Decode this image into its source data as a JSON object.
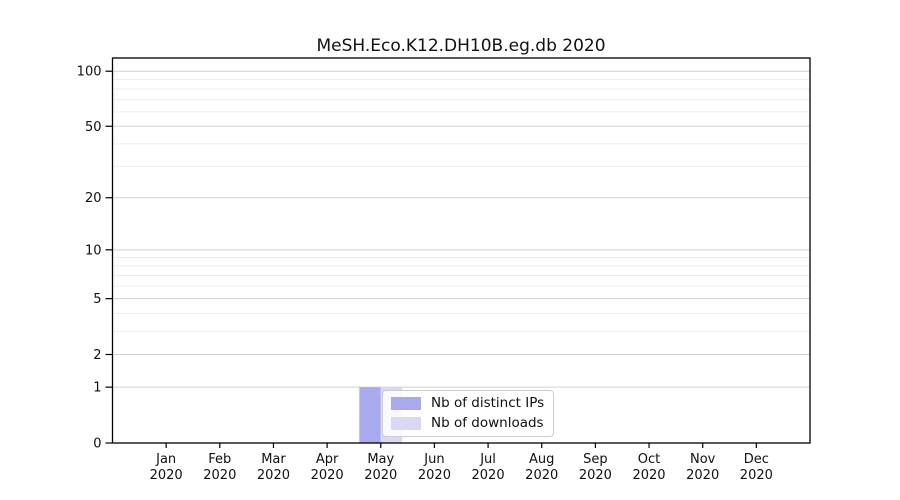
{
  "chart_data": {
    "type": "bar",
    "title": "MeSH.Eco.K12.DH10B.eg.db 2020",
    "x_tick_months": [
      "Jan",
      "Feb",
      "Mar",
      "Apr",
      "May",
      "Jun",
      "Jul",
      "Aug",
      "Sep",
      "Oct",
      "Nov",
      "Dec"
    ],
    "x_tick_year": "2020",
    "series": [
      {
        "name": "Nb of distinct IPs",
        "color": "#a9a9ee",
        "values": [
          0,
          0,
          0,
          0,
          1,
          0,
          0,
          0,
          0,
          0,
          0,
          0
        ]
      },
      {
        "name": "Nb of downloads",
        "color": "#d9d9f7",
        "values": [
          0,
          0,
          0,
          0,
          1,
          0,
          0,
          0,
          0,
          0,
          0,
          0
        ]
      }
    ],
    "y_scale": "log1p",
    "y_ticks": [
      0,
      1,
      2,
      5,
      10,
      20,
      50,
      100
    ],
    "y_minor_gridlines": [
      3,
      4,
      6,
      7,
      8,
      9,
      30,
      40,
      60,
      70,
      80,
      90
    ],
    "ylim": [
      0,
      118
    ],
    "grid": "on",
    "legend_position": "lower-center-overlapping-plot",
    "colors": {
      "grid_major": "#d2d2d2",
      "grid_minor": "#ededed",
      "axis_frame": "#000000",
      "tick_text": "#111111",
      "background": "#ffffff"
    }
  }
}
